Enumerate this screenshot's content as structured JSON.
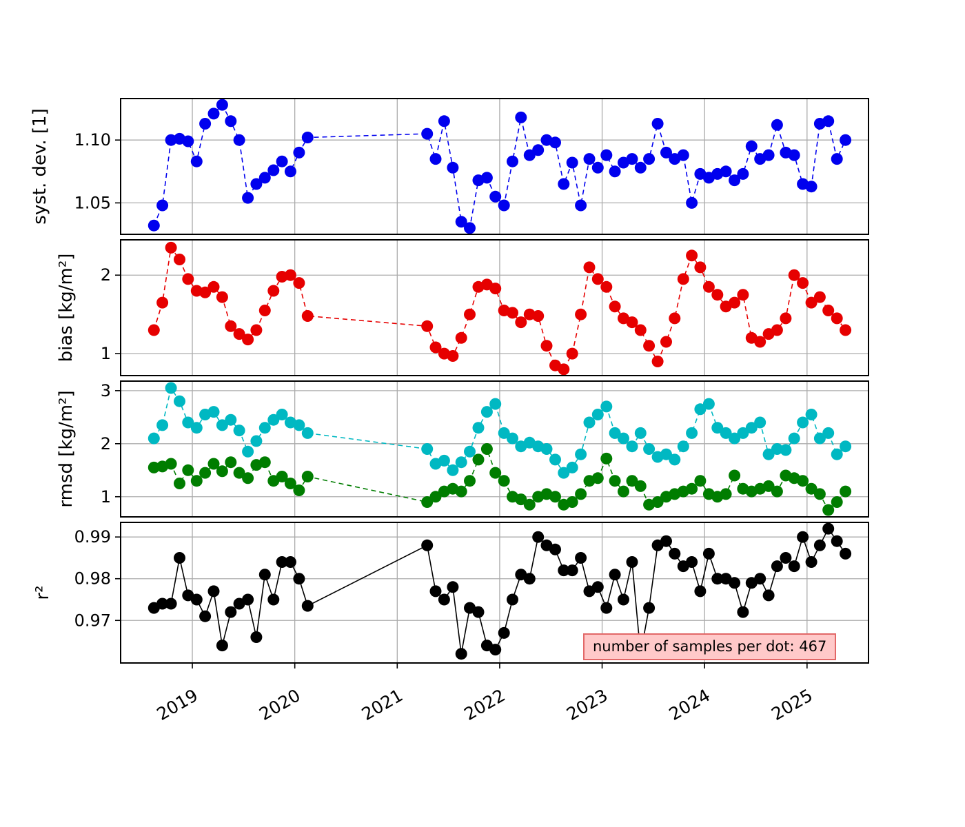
{
  "figure": {
    "background": "#ffffff",
    "grid_color": "#ababab",
    "annotation": {
      "text": "number of samples per dot: 467",
      "bg": "#ffc9c9",
      "border": "#e26868"
    }
  },
  "x": {
    "label": "",
    "lim": [
      2018.3,
      2025.6
    ],
    "ticks": [
      2019,
      2020,
      2021,
      2022,
      2023,
      2024,
      2025
    ],
    "tick_labels": [
      "2019",
      "2020",
      "2021",
      "2022",
      "2023",
      "2024",
      "2025"
    ],
    "values": [
      2018.625,
      2018.708,
      2018.792,
      2018.875,
      2018.958,
      2019.042,
      2019.125,
      2019.208,
      2019.292,
      2019.375,
      2019.458,
      2019.542,
      2019.625,
      2019.708,
      2019.792,
      2019.875,
      2019.958,
      2020.042,
      2020.125,
      2021.292,
      2021.375,
      2021.458,
      2021.542,
      2021.625,
      2021.708,
      2021.792,
      2021.875,
      2021.958,
      2022.042,
      2022.125,
      2022.208,
      2022.292,
      2022.375,
      2022.458,
      2022.542,
      2022.625,
      2022.708,
      2022.792,
      2022.875,
      2022.958,
      2023.042,
      2023.125,
      2023.208,
      2023.292,
      2023.375,
      2023.458,
      2023.542,
      2023.625,
      2023.708,
      2023.792,
      2023.875,
      2023.958,
      2024.042,
      2024.125,
      2024.208,
      2024.292,
      2024.375,
      2024.458,
      2024.542,
      2024.625,
      2024.708,
      2024.792,
      2024.875,
      2024.958,
      2025.042,
      2025.125,
      2025.208,
      2025.292,
      2025.375
    ]
  },
  "chart_data": [
    {
      "id": "syst-dev",
      "type": "scatter",
      "ylabel": "syst. dev. [1]",
      "ylim": [
        1.025,
        1.133
      ],
      "yticks": [
        1.05,
        1.1
      ],
      "ytick_labels": [
        "1.05",
        "1.10"
      ],
      "series": [
        {
          "name": "syst-dev",
          "color": "#0000ee",
          "linestyle": "dashed",
          "values": [
            1.032,
            1.048,
            1.1,
            1.101,
            1.099,
            1.083,
            1.113,
            1.121,
            1.128,
            1.115,
            1.1,
            1.054,
            1.065,
            1.07,
            1.076,
            1.083,
            1.075,
            1.09,
            1.102,
            1.105,
            1.085,
            1.115,
            1.078,
            1.035,
            1.03,
            1.068,
            1.07,
            1.055,
            1.048,
            1.083,
            1.118,
            1.088,
            1.092,
            1.1,
            1.098,
            1.065,
            1.082,
            1.048,
            1.085,
            1.078,
            1.088,
            1.075,
            1.082,
            1.085,
            1.078,
            1.085,
            1.113,
            1.09,
            1.085,
            1.088,
            1.05,
            1.073,
            1.07,
            1.073,
            1.075,
            1.068,
            1.073,
            1.095,
            1.085,
            1.088,
            1.112,
            1.09,
            1.088,
            1.065,
            1.063,
            1.113,
            1.115,
            1.085,
            1.1
          ]
        }
      ]
    },
    {
      "id": "bias",
      "type": "scatter",
      "ylabel": "bias [kg/m²]",
      "ylim": [
        0.72,
        2.45
      ],
      "yticks": [
        1,
        2
      ],
      "ytick_labels": [
        "1",
        "2"
      ],
      "series": [
        {
          "name": "bias",
          "color": "#e60000",
          "linestyle": "dashed",
          "values": [
            1.3,
            1.65,
            2.35,
            2.2,
            1.95,
            1.8,
            1.78,
            1.85,
            1.72,
            1.35,
            1.25,
            1.18,
            1.3,
            1.55,
            1.8,
            1.98,
            2.0,
            1.9,
            1.48,
            1.35,
            1.08,
            1.0,
            0.97,
            1.2,
            1.5,
            1.85,
            1.88,
            1.83,
            1.55,
            1.52,
            1.4,
            1.5,
            1.48,
            1.1,
            0.85,
            0.8,
            1.0,
            1.5,
            2.1,
            1.95,
            1.85,
            1.6,
            1.45,
            1.4,
            1.3,
            1.1,
            0.9,
            1.15,
            1.45,
            1.95,
            2.25,
            2.1,
            1.85,
            1.75,
            1.6,
            1.65,
            1.75,
            1.2,
            1.15,
            1.25,
            1.3,
            1.45,
            2.0,
            1.9,
            1.65,
            1.72,
            1.55,
            1.45,
            1.3
          ]
        }
      ]
    },
    {
      "id": "rmsd",
      "type": "scatter",
      "ylabel": "rmsd [kg/m²]",
      "ylim": [
        0.62,
        3.18
      ],
      "yticks": [
        1,
        2,
        3
      ],
      "ytick_labels": [
        "1",
        "2",
        "3"
      ],
      "series": [
        {
          "name": "rmsd-cyan",
          "color": "#00b8c2",
          "linestyle": "dashed",
          "values": [
            2.1,
            2.35,
            3.05,
            2.8,
            2.4,
            2.3,
            2.55,
            2.6,
            2.35,
            2.45,
            2.25,
            1.85,
            2.05,
            2.3,
            2.45,
            2.55,
            2.4,
            2.35,
            2.2,
            1.9,
            1.62,
            1.68,
            1.5,
            1.65,
            1.85,
            2.3,
            2.6,
            2.75,
            2.2,
            2.1,
            1.95,
            2.02,
            1.95,
            1.9,
            1.7,
            1.45,
            1.55,
            1.8,
            2.4,
            2.55,
            2.7,
            2.2,
            2.1,
            1.95,
            2.2,
            1.9,
            1.75,
            1.8,
            1.7,
            1.95,
            2.2,
            2.65,
            2.75,
            2.3,
            2.2,
            2.1,
            2.2,
            2.3,
            2.4,
            1.8,
            1.9,
            1.88,
            2.1,
            2.4,
            2.55,
            2.1,
            2.2,
            1.8,
            1.95
          ]
        },
        {
          "name": "rmsd-green",
          "color": "#007d00",
          "linestyle": "dashed",
          "values": [
            1.55,
            1.57,
            1.62,
            1.25,
            1.5,
            1.3,
            1.45,
            1.62,
            1.48,
            1.65,
            1.45,
            1.35,
            1.6,
            1.65,
            1.3,
            1.38,
            1.25,
            1.12,
            1.38,
            0.9,
            1.0,
            1.1,
            1.15,
            1.1,
            1.3,
            1.7,
            1.9,
            1.45,
            1.3,
            1.0,
            0.95,
            0.85,
            1.0,
            1.05,
            1.0,
            0.85,
            0.9,
            1.05,
            1.3,
            1.35,
            1.72,
            1.3,
            1.1,
            1.3,
            1.2,
            0.85,
            0.9,
            1.0,
            1.05,
            1.1,
            1.15,
            1.3,
            1.05,
            1.0,
            1.05,
            1.4,
            1.15,
            1.1,
            1.15,
            1.2,
            1.1,
            1.4,
            1.35,
            1.3,
            1.15,
            1.05,
            0.75,
            0.9,
            1.1
          ]
        }
      ]
    },
    {
      "id": "r2",
      "type": "scatter",
      "ylabel": "r²",
      "ylim": [
        0.9598,
        0.9935
      ],
      "yticks": [
        0.97,
        0.98,
        0.99
      ],
      "ytick_labels": [
        "0.97",
        "0.98",
        "0.99"
      ],
      "series": [
        {
          "name": "r2",
          "color": "#000000",
          "linestyle": "solid",
          "values": [
            0.973,
            0.974,
            0.974,
            0.985,
            0.976,
            0.975,
            0.971,
            0.977,
            0.964,
            0.972,
            0.974,
            0.975,
            0.966,
            0.981,
            0.975,
            0.984,
            0.984,
            0.98,
            0.9735,
            0.988,
            0.977,
            0.975,
            0.978,
            0.962,
            0.973,
            0.972,
            0.964,
            0.963,
            0.967,
            0.975,
            0.981,
            0.98,
            0.99,
            0.988,
            0.987,
            0.982,
            0.982,
            0.985,
            0.977,
            0.978,
            0.973,
            0.981,
            0.975,
            0.984,
            0.962,
            0.973,
            0.988,
            0.989,
            0.986,
            0.983,
            0.984,
            0.977,
            0.986,
            0.98,
            0.98,
            0.979,
            0.972,
            0.979,
            0.98,
            0.976,
            0.983,
            0.985,
            0.983,
            0.99,
            0.984,
            0.988,
            0.992,
            0.989,
            0.986
          ]
        }
      ]
    }
  ]
}
